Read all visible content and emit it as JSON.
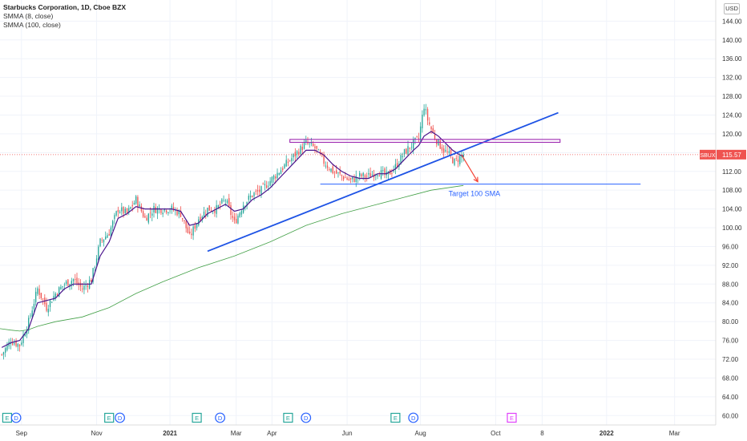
{
  "legend": {
    "title": "Starbucks Corporation, 1D, Cboe BZX",
    "ind1": "SMMA (8, close)",
    "ind2": "SMMA (100, close)"
  },
  "currency": "USD",
  "colors": {
    "up": "#26a69a",
    "down": "#ef5350",
    "smma8": "#4a148c",
    "smma100": "#43a047",
    "trendline": "#1e53e5",
    "resistance": "#9c27b0",
    "target": "#2962ff",
    "arrow": "#f44336",
    "price_line": "#ef5350",
    "earnings": "#26a69a",
    "dividend": "#2962ff",
    "future_earnings": "#e040fb"
  },
  "chart_data": {
    "type": "candlestick",
    "symbol": "SBUX",
    "last_price": 115.57,
    "ylim": [
      58.0,
      148.5
    ],
    "y_ticks": [
      60,
      64,
      68,
      72,
      76,
      80,
      84,
      88,
      92,
      96,
      100,
      104,
      108,
      112,
      116,
      120,
      124,
      128,
      132,
      136,
      140,
      144
    ],
    "x_tick_labels": [
      {
        "label": "Sep",
        "t": 11
      },
      {
        "label": "Nov",
        "t": 53
      },
      {
        "label": "2021",
        "t": 94
      },
      {
        "label": "Mar",
        "t": 131
      },
      {
        "label": "Apr",
        "t": 151
      },
      {
        "label": "Jun",
        "t": 193
      },
      {
        "label": "Aug",
        "t": 234
      },
      {
        "label": "Oct",
        "t": 276
      },
      {
        "label": "8",
        "t": 302
      },
      {
        "label": "2022",
        "t": 338
      },
      {
        "label": "Mar",
        "t": 376
      }
    ],
    "x_range": [
      -1,
      399
    ],
    "price_anchors": [
      [
        0,
        73.0
      ],
      [
        5,
        76.0
      ],
      [
        10,
        75.0
      ],
      [
        15,
        80.0
      ],
      [
        20,
        87.0
      ],
      [
        25,
        83.0
      ],
      [
        30,
        86.0
      ],
      [
        35,
        88.0
      ],
      [
        40,
        89.0
      ],
      [
        45,
        87.0
      ],
      [
        50,
        89.0
      ],
      [
        55,
        97.0
      ],
      [
        60,
        99.0
      ],
      [
        65,
        104.0
      ],
      [
        70,
        103.0
      ],
      [
        75,
        106.0
      ],
      [
        80,
        102.0
      ],
      [
        85,
        104.0
      ],
      [
        90,
        104.0
      ],
      [
        95,
        104.0
      ],
      [
        100,
        103.0
      ],
      [
        105,
        98.0
      ],
      [
        110,
        102.0
      ],
      [
        115,
        104.0
      ],
      [
        120,
        104.0
      ],
      [
        125,
        106.0
      ],
      [
        130,
        101.0
      ],
      [
        135,
        105.0
      ],
      [
        140,
        107.0
      ],
      [
        145,
        108.0
      ],
      [
        150,
        110.0
      ],
      [
        155,
        112.0
      ],
      [
        160,
        114.0
      ],
      [
        165,
        116.0
      ],
      [
        170,
        118.0
      ],
      [
        175,
        117.0
      ],
      [
        180,
        114.0
      ],
      [
        185,
        112.0
      ],
      [
        190,
        111.0
      ],
      [
        195,
        110.0
      ],
      [
        200,
        111.0
      ],
      [
        205,
        111.0
      ],
      [
        210,
        112.0
      ],
      [
        215,
        111.0
      ],
      [
        220,
        113.0
      ],
      [
        225,
        116.0
      ],
      [
        230,
        118.0
      ],
      [
        233,
        119.0
      ],
      [
        236,
        126.0
      ],
      [
        238,
        123.0
      ],
      [
        241,
        120.0
      ],
      [
        244,
        118.0
      ],
      [
        247,
        116.5
      ],
      [
        250,
        115.5
      ],
      [
        253,
        114.0
      ],
      [
        256,
        115.0
      ],
      [
        258,
        115.6
      ]
    ],
    "smma8_anchors": [
      [
        0,
        74.5
      ],
      [
        5,
        75.5
      ],
      [
        10,
        76.0
      ],
      [
        15,
        78.5
      ],
      [
        20,
        84.0
      ],
      [
        25,
        84.5
      ],
      [
        30,
        85.0
      ],
      [
        35,
        87.0
      ],
      [
        40,
        88.0
      ],
      [
        45,
        88.0
      ],
      [
        50,
        88.0
      ],
      [
        55,
        94.0
      ],
      [
        60,
        97.0
      ],
      [
        65,
        102.0
      ],
      [
        70,
        103.0
      ],
      [
        75,
        104.5
      ],
      [
        80,
        104.0
      ],
      [
        85,
        104.0
      ],
      [
        90,
        104.0
      ],
      [
        95,
        104.0
      ],
      [
        100,
        103.5
      ],
      [
        105,
        100.5
      ],
      [
        110,
        101.0
      ],
      [
        115,
        103.0
      ],
      [
        120,
        104.0
      ],
      [
        125,
        105.0
      ],
      [
        130,
        103.5
      ],
      [
        135,
        104.0
      ],
      [
        140,
        106.0
      ],
      [
        145,
        107.0
      ],
      [
        150,
        108.5
      ],
      [
        155,
        110.5
      ],
      [
        160,
        112.5
      ],
      [
        165,
        114.5
      ],
      [
        170,
        116.5
      ],
      [
        175,
        116.5
      ],
      [
        180,
        115.5
      ],
      [
        185,
        113.5
      ],
      [
        190,
        112.0
      ],
      [
        195,
        111.0
      ],
      [
        200,
        110.5
      ],
      [
        205,
        110.5
      ],
      [
        210,
        111.5
      ],
      [
        215,
        111.5
      ],
      [
        220,
        112.5
      ],
      [
        225,
        114.5
      ],
      [
        230,
        116.5
      ],
      [
        233,
        117.5
      ],
      [
        236,
        119.5
      ],
      [
        240,
        120.5
      ],
      [
        244,
        119.5
      ],
      [
        248,
        118.0
      ],
      [
        252,
        116.5
      ],
      [
        256,
        115.5
      ],
      [
        258,
        115.3
      ]
    ],
    "smma100_anchors": [
      [
        -1,
        78.5
      ],
      [
        5,
        78.2
      ],
      [
        10,
        78.0
      ],
      [
        15,
        78.3
      ],
      [
        20,
        79.0
      ],
      [
        30,
        80.0
      ],
      [
        45,
        81.0
      ],
      [
        60,
        83.0
      ],
      [
        75,
        86.0
      ],
      [
        90,
        88.5
      ],
      [
        110,
        91.5
      ],
      [
        130,
        94.0
      ],
      [
        150,
        97.0
      ],
      [
        170,
        100.5
      ],
      [
        190,
        103.0
      ],
      [
        210,
        105.0
      ],
      [
        225,
        106.5
      ],
      [
        240,
        108.0
      ],
      [
        258,
        109.0
      ]
    ],
    "annotations": {
      "trendline": {
        "start": [
          115,
          95.0
        ],
        "end": [
          311,
          124.5
        ]
      },
      "resistance": {
        "x": [
          161,
          312
        ],
        "price": 118.5,
        "label": ""
      },
      "target_line": {
        "x": [
          178,
          357
        ],
        "price": 109.3,
        "label": "Target 100 SMA"
      },
      "arrow": {
        "from": [
          257,
          115.5
        ],
        "to": [
          266,
          109.8
        ]
      }
    },
    "events": [
      {
        "type": "E",
        "t": 3
      },
      {
        "type": "D",
        "t": 8
      },
      {
        "type": "E",
        "t": 60
      },
      {
        "type": "D",
        "t": 66
      },
      {
        "type": "E",
        "t": 109
      },
      {
        "type": "D",
        "t": 122
      },
      {
        "type": "E",
        "t": 160
      },
      {
        "type": "D",
        "t": 170
      },
      {
        "type": "E",
        "t": 220
      },
      {
        "type": "D",
        "t": 230
      },
      {
        "type": "E",
        "t": 285,
        "future": true
      }
    ]
  }
}
